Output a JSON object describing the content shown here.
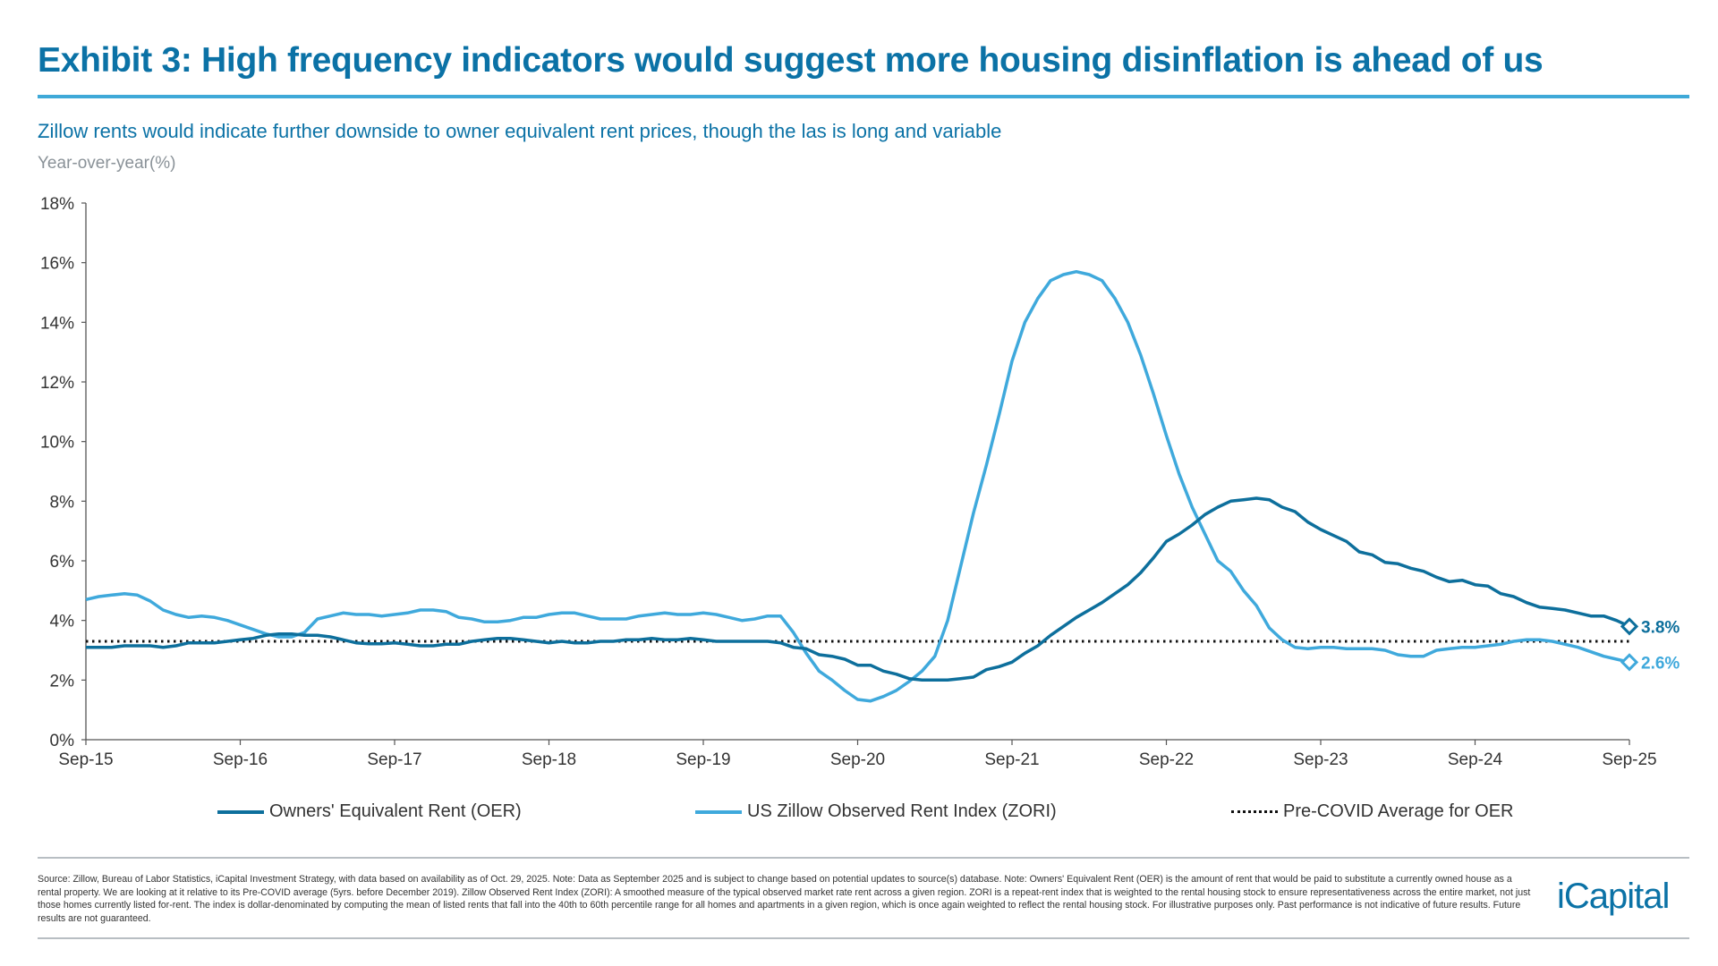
{
  "header": {
    "title": "Exhibit 3: High frequency indicators would suggest more housing disinflation is ahead of us",
    "subtitle": "Zillow rents would indicate further downside to owner equivalent rent prices, though the las is long and variable",
    "unit_label": "Year-over-year(%)"
  },
  "colors": {
    "title": "#0b72a6",
    "oer": "#0d6f9c",
    "zori": "#3fa9dc",
    "avg": "#111111"
  },
  "chart_data": {
    "type": "line",
    "frequency": "monthly",
    "x_start": "Sep-15",
    "x_end": "Sep-25",
    "x_ticks": [
      "Sep-15",
      "Sep-16",
      "Sep-17",
      "Sep-18",
      "Sep-19",
      "Sep-20",
      "Sep-21",
      "Sep-22",
      "Sep-23",
      "Sep-24",
      "Sep-25"
    ],
    "y_ticks": [
      "0%",
      "2%",
      "4%",
      "6%",
      "8%",
      "10%",
      "12%",
      "14%",
      "16%",
      "18%"
    ],
    "ylim": [
      0,
      18
    ],
    "grid": false,
    "legend_position": "bottom",
    "series": [
      {
        "name": "Owners' Equivalent Rent (OER)",
        "end_label": "3.8%",
        "values": [
          3.1,
          3.1,
          3.1,
          3.15,
          3.15,
          3.15,
          3.1,
          3.15,
          3.25,
          3.25,
          3.25,
          3.3,
          3.35,
          3.4,
          3.5,
          3.55,
          3.55,
          3.5,
          3.5,
          3.45,
          3.35,
          3.25,
          3.22,
          3.22,
          3.25,
          3.2,
          3.15,
          3.15,
          3.2,
          3.2,
          3.3,
          3.35,
          3.4,
          3.4,
          3.35,
          3.3,
          3.25,
          3.3,
          3.25,
          3.25,
          3.3,
          3.3,
          3.35,
          3.35,
          3.4,
          3.35,
          3.35,
          3.4,
          3.35,
          3.3,
          3.3,
          3.3,
          3.3,
          3.3,
          3.25,
          3.1,
          3.05,
          2.85,
          2.8,
          2.7,
          2.5,
          2.5,
          2.3,
          2.2,
          2.05,
          2.0,
          2.0,
          2.0,
          2.05,
          2.1,
          2.35,
          2.45,
          2.6,
          2.9,
          3.15,
          3.5,
          3.8,
          4.1,
          4.35,
          4.6,
          4.9,
          5.2,
          5.6,
          6.1,
          6.65,
          6.9,
          7.2,
          7.55,
          7.8,
          8.0,
          8.05,
          8.1,
          8.05,
          7.8,
          7.65,
          7.3,
          7.05,
          6.85,
          6.65,
          6.3,
          6.2,
          5.95,
          5.9,
          5.75,
          5.65,
          5.45,
          5.3,
          5.35,
          5.2,
          5.15,
          4.9,
          4.8,
          4.6,
          4.45,
          4.4,
          4.35,
          4.25,
          4.15,
          4.15,
          4.0,
          3.8
        ]
      },
      {
        "name": "US Zillow Observed Rent Index (ZORI)",
        "end_label": "2.6%",
        "values": [
          4.7,
          4.8,
          4.85,
          4.9,
          4.85,
          4.65,
          4.35,
          4.2,
          4.1,
          4.15,
          4.1,
          4.0,
          3.85,
          3.7,
          3.55,
          3.45,
          3.45,
          3.6,
          4.05,
          4.15,
          4.25,
          4.2,
          4.2,
          4.15,
          4.2,
          4.25,
          4.35,
          4.35,
          4.3,
          4.1,
          4.05,
          3.95,
          3.95,
          4.0,
          4.1,
          4.1,
          4.2,
          4.25,
          4.25,
          4.15,
          4.05,
          4.05,
          4.05,
          4.15,
          4.2,
          4.25,
          4.2,
          4.2,
          4.25,
          4.2,
          4.1,
          4.0,
          4.05,
          4.15,
          4.15,
          3.6,
          2.9,
          2.3,
          2.0,
          1.65,
          1.35,
          1.3,
          1.45,
          1.65,
          1.95,
          2.3,
          2.8,
          4.0,
          5.8,
          7.6,
          9.2,
          10.9,
          12.7,
          14.0,
          14.8,
          15.4,
          15.6,
          15.7,
          15.6,
          15.4,
          14.8,
          14.0,
          12.9,
          11.6,
          10.2,
          8.9,
          7.8,
          6.9,
          6.0,
          5.65,
          5.0,
          4.5,
          3.75,
          3.35,
          3.1,
          3.05,
          3.1,
          3.1,
          3.05,
          3.05,
          3.05,
          3.0,
          2.85,
          2.8,
          2.8,
          3.0,
          3.05,
          3.1,
          3.1,
          3.15,
          3.2,
          3.3,
          3.35,
          3.35,
          3.3,
          3.2,
          3.1,
          2.95,
          2.8,
          2.7,
          2.6
        ]
      },
      {
        "name": "Pre-COVID Average for OER",
        "constant": 3.3
      }
    ]
  },
  "legend": [
    "Owners' Equivalent Rent (OER)",
    "US Zillow Observed Rent Index (ZORI)",
    "Pre-COVID Average for OER"
  ],
  "footer": {
    "source": "Source: Zillow, Bureau of Labor Statistics, iCapital Investment Strategy, with data based on availability as of Oct. 29, 2025. Note: Data as September 2025 and is subject to change based on potential updates to source(s) database. Note: Owners' Equivalent Rent (OER) is the amount of rent that would be paid to substitute a currently owned house as a rental property. We are looking at it relative to its Pre-COVID average (5yrs. before December 2019). Zillow Observed Rent Index (ZORI): A smoothed measure of the typical observed market rate rent across a given region. ZORI is a repeat-rent index that is weighted to the rental housing stock to ensure representativeness across the entire market, not just those homes currently listed for-rent. The index is dollar-denominated by computing the mean of listed rents that fall into the 40th to 60th percentile range for all homes and apartments in a given region, which is once again weighted to reflect the rental housing stock.  For illustrative purposes only. Past performance is not indicative of future results. Future results are not guaranteed.",
    "logo": "iCapital"
  }
}
